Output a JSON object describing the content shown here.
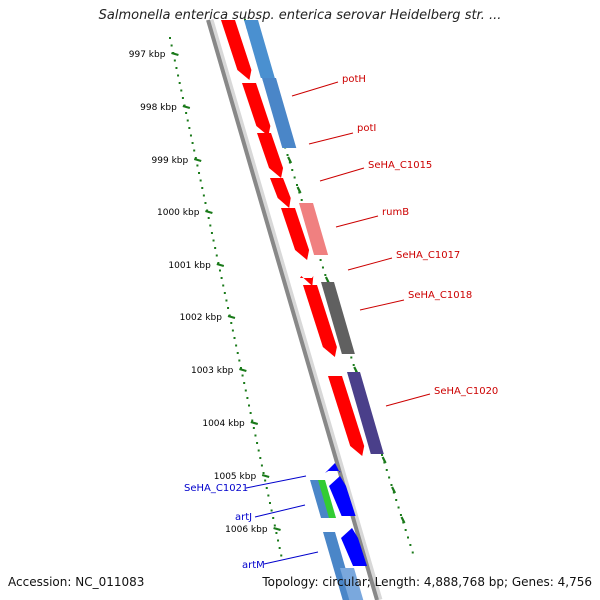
{
  "title": "Salmonella enterica subsp. enterica serovar Heidelberg str. ...",
  "footer": {
    "accession": "Accession: NC_011083",
    "summary": "Topology: circular; Length: 4,888,768 bp; Genes: 4,756"
  },
  "scale": {
    "ticks": [
      {
        "label": "997 kbp"
      },
      {
        "label": "998 kbp"
      },
      {
        "label": "999 kbp"
      },
      {
        "label": "1000 kbp"
      },
      {
        "label": "1001 kbp"
      },
      {
        "label": "1002 kbp"
      },
      {
        "label": "1003 kbp"
      },
      {
        "label": "1004 kbp"
      },
      {
        "label": "1005 kbp"
      },
      {
        "label": "1006 kbp"
      }
    ]
  },
  "genes": [
    {
      "label": "potH",
      "color": "#cc0000"
    },
    {
      "label": "potI",
      "color": "#cc0000"
    },
    {
      "label": "SeHA_C1015",
      "color": "#cc0000"
    },
    {
      "label": "rumB",
      "color": "#cc0000"
    },
    {
      "label": "SeHA_C1017",
      "color": "#cc0000"
    },
    {
      "label": "SeHA_C1018",
      "color": "#cc0000"
    },
    {
      "label": "SeHA_C1020",
      "color": "#cc0000"
    },
    {
      "label": "SeHA_C1021",
      "color": "#0000cc"
    },
    {
      "label": "artJ",
      "color": "#0000cc"
    },
    {
      "label": "artM",
      "color": "#0000cc"
    }
  ],
  "colors": {
    "forward_cds": "#ff0000",
    "reverse_cds": "#0000ff",
    "backbone": "#888888",
    "tick": "#1a7a1a"
  }
}
